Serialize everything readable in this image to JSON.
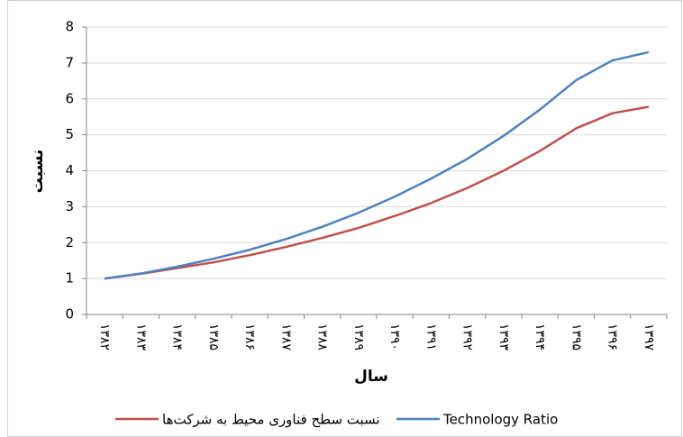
{
  "chart_data": {
    "type": "line",
    "x_label": "سال",
    "y_label": "نسبت",
    "categories": [
      "۱۳۸۲",
      "۱۳۸۳",
      "۱۳۸۴",
      "۱۳۸۵",
      "۱۳۸۶",
      "۱۳۸۷",
      "۱۳۸۸",
      "۱۳۸۹",
      "۱۳۹۰",
      "۱۳۹۱",
      "۱۳۹۲",
      "۱۳۹۳",
      "۱۳۹۴",
      "۱۳۹۵",
      "۱۳۹۶",
      "۱۳۹۷"
    ],
    "series": [
      {
        "name": "نسبت سطح فناوری محیط به شرکت‌ها",
        "color": "#c0504d",
        "values": [
          1.0,
          1.13,
          1.29,
          1.45,
          1.65,
          1.88,
          2.13,
          2.41,
          2.74,
          3.1,
          3.52,
          4.0,
          4.55,
          5.18,
          5.6,
          5.78
        ]
      },
      {
        "name": "Technology Ratio",
        "color": "#4f81bd",
        "values": [
          1.0,
          1.14,
          1.33,
          1.55,
          1.8,
          2.1,
          2.44,
          2.83,
          3.28,
          3.78,
          4.33,
          4.97,
          5.7,
          6.52,
          7.07,
          7.3
        ]
      }
    ],
    "ylim": [
      0,
      8
    ],
    "yticks": [
      0,
      1,
      2,
      3,
      4,
      5,
      6,
      7,
      8
    ],
    "grid": true,
    "legend": "bottom"
  }
}
